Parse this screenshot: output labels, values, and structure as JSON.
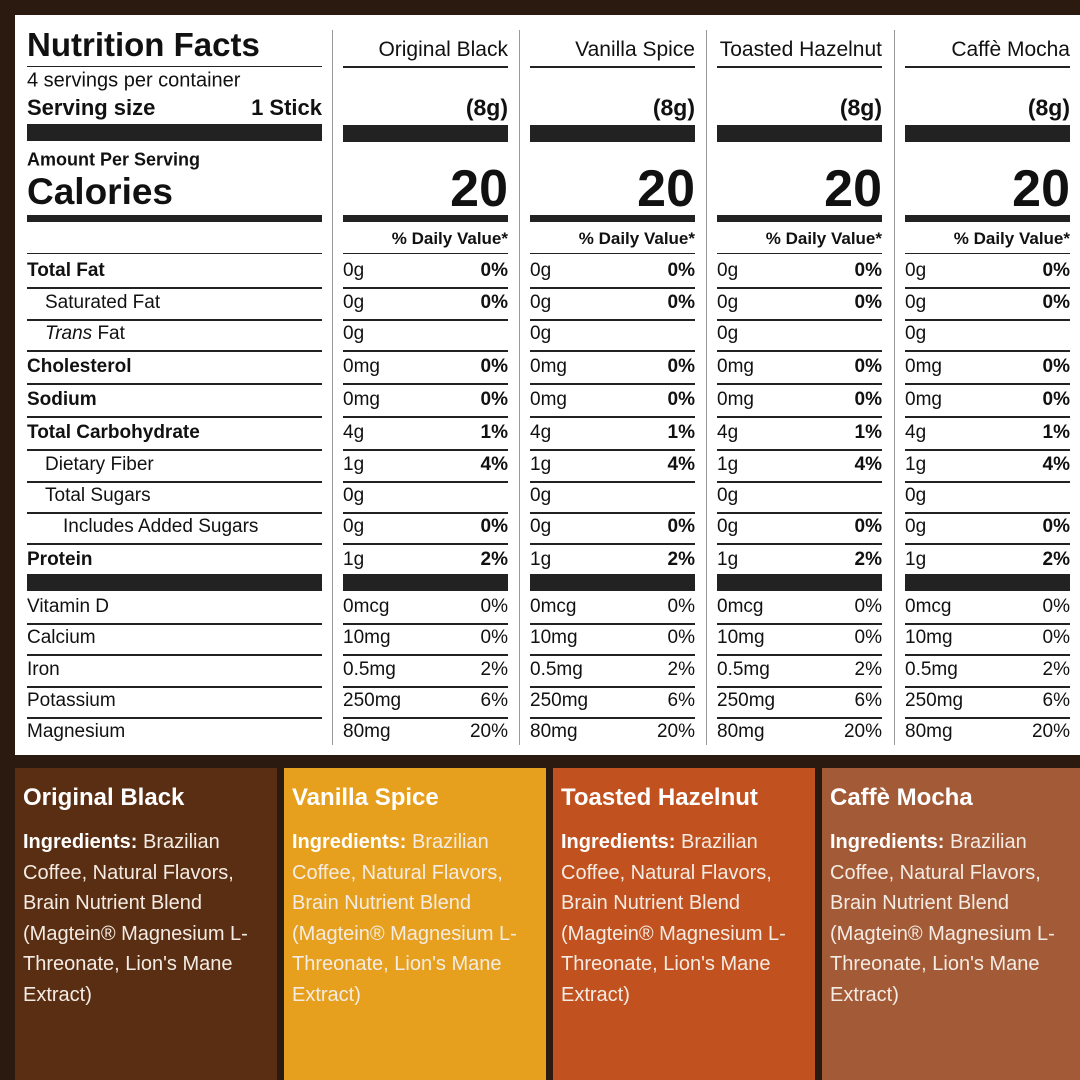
{
  "label": {
    "title": "Nutrition Facts",
    "servings": "4 servings per container",
    "serving_size_label": "Serving size",
    "serving_size_value": "1 Stick",
    "amount_per_serving": "Amount Per Serving",
    "calories_label": "Calories",
    "nutrients": [
      "Total Fat",
      "Saturated Fat",
      {
        "italic": "Trans",
        "text": "Fat"
      },
      "Cholesterol",
      "Sodium",
      "Total Carbohydrate",
      "Dietary Fiber",
      "Total Sugars",
      "Includes Added Sugars",
      "Protein"
    ],
    "vitamins": [
      "Vitamin D",
      "Calcium",
      "Iron",
      "Potassium",
      "Magnesium"
    ]
  },
  "products": [
    {
      "name": "Original Black",
      "serving_weight": "(8g)",
      "calories": "20",
      "dv_header": "% Daily Value*",
      "nutrients": [
        [
          "0g",
          "0%"
        ],
        [
          "0g",
          "0%"
        ],
        [
          "0g",
          null
        ],
        [
          "0mg",
          "0%"
        ],
        [
          "0mg",
          "0%"
        ],
        [
          "4g",
          "1%"
        ],
        [
          "1g",
          "4%"
        ],
        [
          "0g",
          null
        ],
        [
          "0g",
          "0%"
        ],
        [
          "1g",
          "2%"
        ]
      ],
      "vitamins": [
        [
          "0mcg",
          "0%"
        ],
        [
          "10mg",
          "0%"
        ],
        [
          "0.5mg",
          "2%"
        ],
        [
          "250mg",
          "6%"
        ],
        [
          "80mg",
          "20%"
        ]
      ],
      "ingredients_label": "Ingredients:",
      "ingredients": "Brazilian Coffee, Natural Flavors, Brain Nutrient Blend (Magtein® Magnesium L-Threonate, Lion's Mane Extract)"
    },
    {
      "name": "Vanilla Spice",
      "serving_weight": "(8g)",
      "calories": "20",
      "dv_header": "% Daily Value*",
      "nutrients": [
        [
          "0g",
          "0%"
        ],
        [
          "0g",
          "0%"
        ],
        [
          "0g",
          null
        ],
        [
          "0mg",
          "0%"
        ],
        [
          "0mg",
          "0%"
        ],
        [
          "4g",
          "1%"
        ],
        [
          "1g",
          "4%"
        ],
        [
          "0g",
          null
        ],
        [
          "0g",
          "0%"
        ],
        [
          "1g",
          "2%"
        ]
      ],
      "vitamins": [
        [
          "0mcg",
          "0%"
        ],
        [
          "10mg",
          "0%"
        ],
        [
          "0.5mg",
          "2%"
        ],
        [
          "250mg",
          "6%"
        ],
        [
          "80mg",
          "20%"
        ]
      ],
      "ingredients_label": "Ingredients:",
      "ingredients": "Brazilian Coffee, Natural Flavors, Brain Nutrient Blend (Magtein® Magnesium L-Threonate, Lion's Mane Extract)"
    },
    {
      "name": "Toasted Hazelnut",
      "serving_weight": "(8g)",
      "calories": "20",
      "dv_header": "% Daily Value*",
      "nutrients": [
        [
          "0g",
          "0%"
        ],
        [
          "0g",
          "0%"
        ],
        [
          "0g",
          null
        ],
        [
          "0mg",
          "0%"
        ],
        [
          "0mg",
          "0%"
        ],
        [
          "4g",
          "1%"
        ],
        [
          "1g",
          "4%"
        ],
        [
          "0g",
          null
        ],
        [
          "0g",
          "0%"
        ],
        [
          "1g",
          "2%"
        ]
      ],
      "vitamins": [
        [
          "0mcg",
          "0%"
        ],
        [
          "10mg",
          "0%"
        ],
        [
          "0.5mg",
          "2%"
        ],
        [
          "250mg",
          "6%"
        ],
        [
          "80mg",
          "20%"
        ]
      ],
      "ingredients_label": "Ingredients:",
      "ingredients": "Brazilian Coffee, Natural Flavors, Brain Nutrient Blend (Magtein® Magnesium L-Threonate, Lion's Mane Extract)"
    },
    {
      "name": "Caffè Mocha",
      "serving_weight": "(8g)",
      "calories": "20",
      "dv_header": "% Daily Value*",
      "nutrients": [
        [
          "0g",
          "0%"
        ],
        [
          "0g",
          "0%"
        ],
        [
          "0g",
          null
        ],
        [
          "0mg",
          "0%"
        ],
        [
          "0mg",
          "0%"
        ],
        [
          "4g",
          "1%"
        ],
        [
          "1g",
          "4%"
        ],
        [
          "0g",
          null
        ],
        [
          "0g",
          "0%"
        ],
        [
          "1g",
          "2%"
        ]
      ],
      "vitamins": [
        [
          "0mcg",
          "0%"
        ],
        [
          "10mg",
          "0%"
        ],
        [
          "0.5mg",
          "2%"
        ],
        [
          "250mg",
          "6%"
        ],
        [
          "80mg",
          "20%"
        ]
      ],
      "ingredients_label": "Ingredients:",
      "ingredients": "Brazilian Coffee, Natural Flavors, Brain Nutrient Blend (Magtein® Magnesium L-Threonate, Lion's Mane Extract)"
    }
  ]
}
